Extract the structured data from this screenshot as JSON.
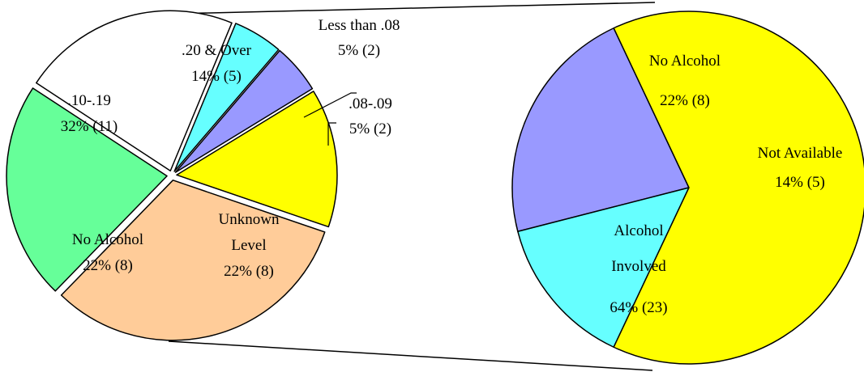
{
  "chart_data": [
    {
      "type": "pie",
      "title": "",
      "unit": "percent",
      "slices": [
        {
          "label": "Less than .08",
          "value": 5,
          "count": 2,
          "display": "5% (2)",
          "color": "#9999ff"
        },
        {
          "label": ".08-.09",
          "value": 5,
          "count": 2,
          "display": "5% (2)",
          "color": "#66ffff"
        },
        {
          "label": "Unknown Level",
          "value": 22,
          "count": 8,
          "display": "22% (8)",
          "color": "#ffffff"
        },
        {
          "label": "No Alcohol",
          "value": 22,
          "count": 8,
          "display": "22% (8)",
          "color": "#66ff99"
        },
        {
          "label": ".10-.19",
          "value": 32,
          "count": 11,
          "display": "32% (11)",
          "color": "#ffcc99"
        },
        {
          "label": ".20 & Over",
          "value": 14,
          "count": 5,
          "display": "14% (5)",
          "color": "#ffff00"
        }
      ]
    },
    {
      "type": "pie",
      "title": "",
      "unit": "percent",
      "slices": [
        {
          "label": "No Alcohol",
          "value": 22,
          "count": 8,
          "display": "22% (8)",
          "color": "#9999ff"
        },
        {
          "label": "Not Available",
          "value": 14,
          "count": 5,
          "display": "14% (5)",
          "color": "#66ffff"
        },
        {
          "label": "Alcohol Involved",
          "value": 64,
          "count": 23,
          "display": "64% (23)",
          "color": "#ffff00"
        }
      ]
    }
  ]
}
